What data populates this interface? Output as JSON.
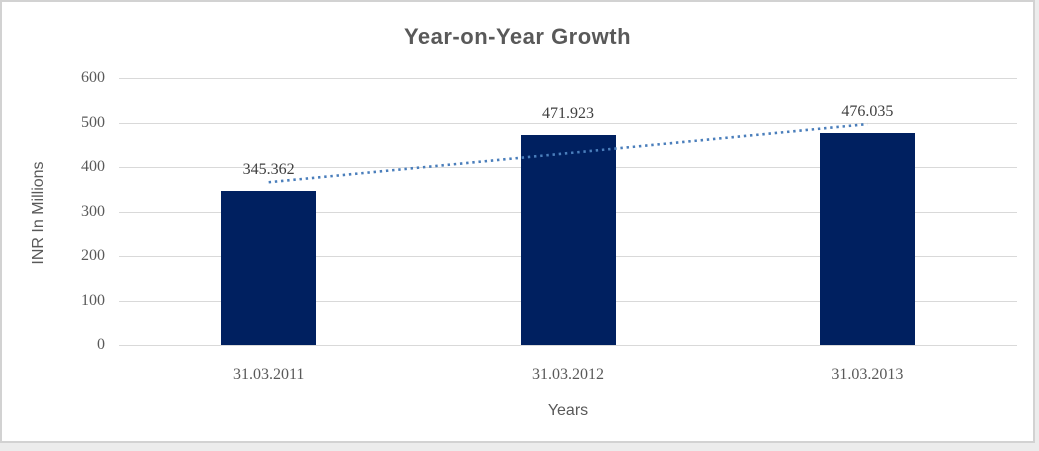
{
  "chart_data": {
    "type": "bar",
    "title": "Year-on-Year Growth",
    "xlabel": "Years",
    "ylabel": "INR In Millions",
    "categories": [
      "31.03.2011",
      "31.03.2012",
      "31.03.2013"
    ],
    "values": [
      345.362,
      471.923,
      476.035
    ],
    "data_labels": [
      "345.362",
      "471.923",
      "476.035"
    ],
    "yticks": [
      0,
      100,
      200,
      300,
      400,
      500,
      600
    ],
    "ytick_labels": [
      "0",
      "100",
      "200",
      "300",
      "400",
      "500",
      "600"
    ],
    "ylim": [
      0,
      600
    ],
    "grid": true,
    "legend": "none",
    "trendline": {
      "kind": "linear",
      "style": "dotted"
    },
    "colors": {
      "bar": "#002060",
      "trend": "#4A7EBB",
      "grid": "#D9D9D9",
      "axis_text": "#595959",
      "title_text": "#595959",
      "data_label_text": "#3F3F3F",
      "frame_border": "#D2D2D2",
      "background": "#FFFFFF"
    }
  }
}
